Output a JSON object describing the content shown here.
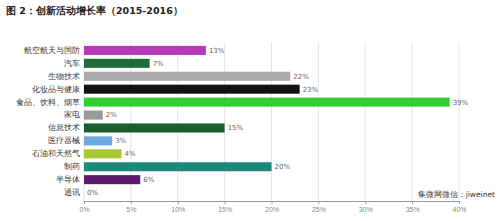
{
  "chart_data": {
    "type": "bar",
    "orientation": "horizontal",
    "title": "图 2：创新活动增长率（2015-2016）",
    "categories": [
      "航空航天与国防",
      "汽车",
      "生物技术",
      "化妆品与健康",
      "食品、饮料、烟草",
      "家电",
      "信息技术",
      "医疗器械",
      "石油和天然气",
      "制药",
      "半导体",
      "通讯"
    ],
    "values": [
      13,
      7,
      22,
      23,
      39,
      2,
      15,
      3,
      4,
      20,
      6,
      0
    ],
    "value_labels": [
      "13%",
      "7%",
      "22%",
      "23%",
      "39%",
      "2%",
      "15%",
      "3%",
      "4%",
      "20%",
      "6%",
      "0%"
    ],
    "colors": [
      "#b53ab5",
      "#1f6b3a",
      "#aaaaaa",
      "#111111",
      "#33cc33",
      "#999999",
      "#1a5e2f",
      "#6fa8dc",
      "#a6c832",
      "#1b8a7a",
      "#5b1a6b",
      "#cccccc"
    ],
    "xlim": [
      0,
      40
    ],
    "xticks": [
      {
        "value": 0,
        "label": "0%"
      },
      {
        "value": 5,
        "label": "5%"
      },
      {
        "value": 10,
        "label": "10%"
      },
      {
        "value": 15,
        "label": "15%"
      },
      {
        "value": 20,
        "label": "20%"
      },
      {
        "value": 25,
        "label": "25%"
      },
      {
        "value": 30,
        "label": "30%"
      },
      {
        "value": 35,
        "label": "35%"
      },
      {
        "value": 40,
        "label": "40%"
      }
    ],
    "grid": true,
    "data_labels": true,
    "annotations": [
      "集微网微信：jiweinet"
    ]
  }
}
